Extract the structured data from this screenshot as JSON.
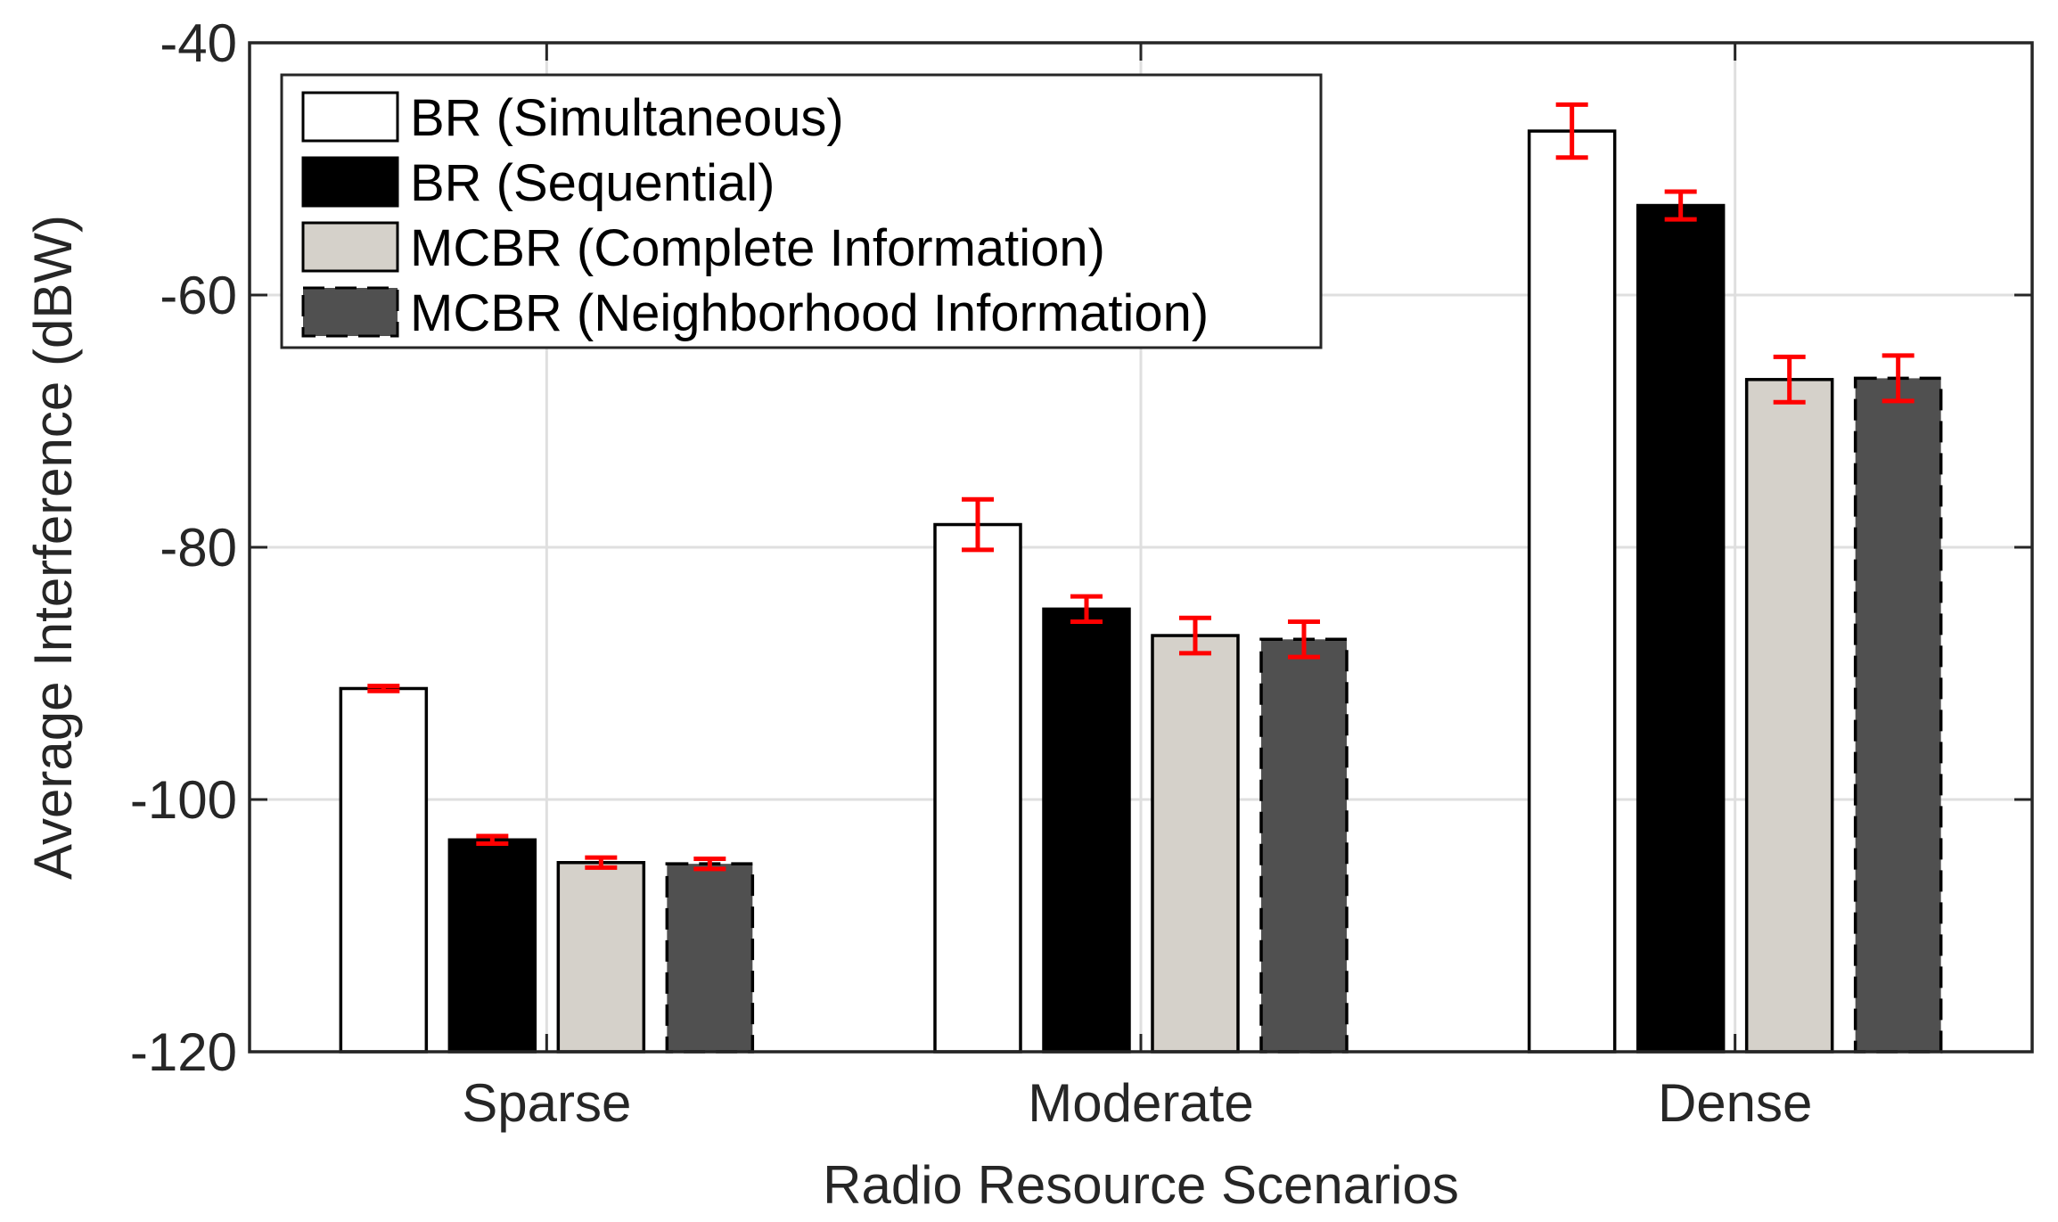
{
  "chart_data": {
    "type": "bar",
    "title": "",
    "xlabel": "Radio Resource Scenarios",
    "ylabel": "Average Interference (dBW)",
    "categories": [
      "Sparse",
      "Moderate",
      "Dense"
    ],
    "ylim": [
      -120,
      -40
    ],
    "yticks": [
      -120,
      -100,
      -80,
      -60,
      -40
    ],
    "ytick_labels": [
      "-120",
      "-100",
      "-80",
      "-60",
      "-40"
    ],
    "grid": true,
    "legend_location": "top-left",
    "error_bar_color": "#ff0000",
    "series": [
      {
        "name": "BR (Simultaneous)",
        "values": [
          -91.2,
          -78.2,
          -47.0
        ],
        "errors": [
          0.2,
          2.0,
          2.1
        ],
        "fill": "#ffffff",
        "dashed": false
      },
      {
        "name": "BR (Sequential)",
        "values": [
          -103.2,
          -84.9,
          -52.9
        ],
        "errors": [
          0.3,
          1.0,
          1.1
        ],
        "fill": "#000000",
        "dashed": false
      },
      {
        "name": "MCBR (Complete Information)",
        "values": [
          -105.0,
          -87.0,
          -66.7
        ],
        "errors": [
          0.4,
          1.4,
          1.8
        ],
        "fill": "#d5d1ca",
        "dashed": false
      },
      {
        "name": "MCBR (Neighborhood Information)",
        "values": [
          -105.1,
          -87.3,
          -66.6
        ],
        "errors": [
          0.4,
          1.4,
          1.8
        ],
        "fill": "#505050",
        "dashed": true
      }
    ]
  }
}
